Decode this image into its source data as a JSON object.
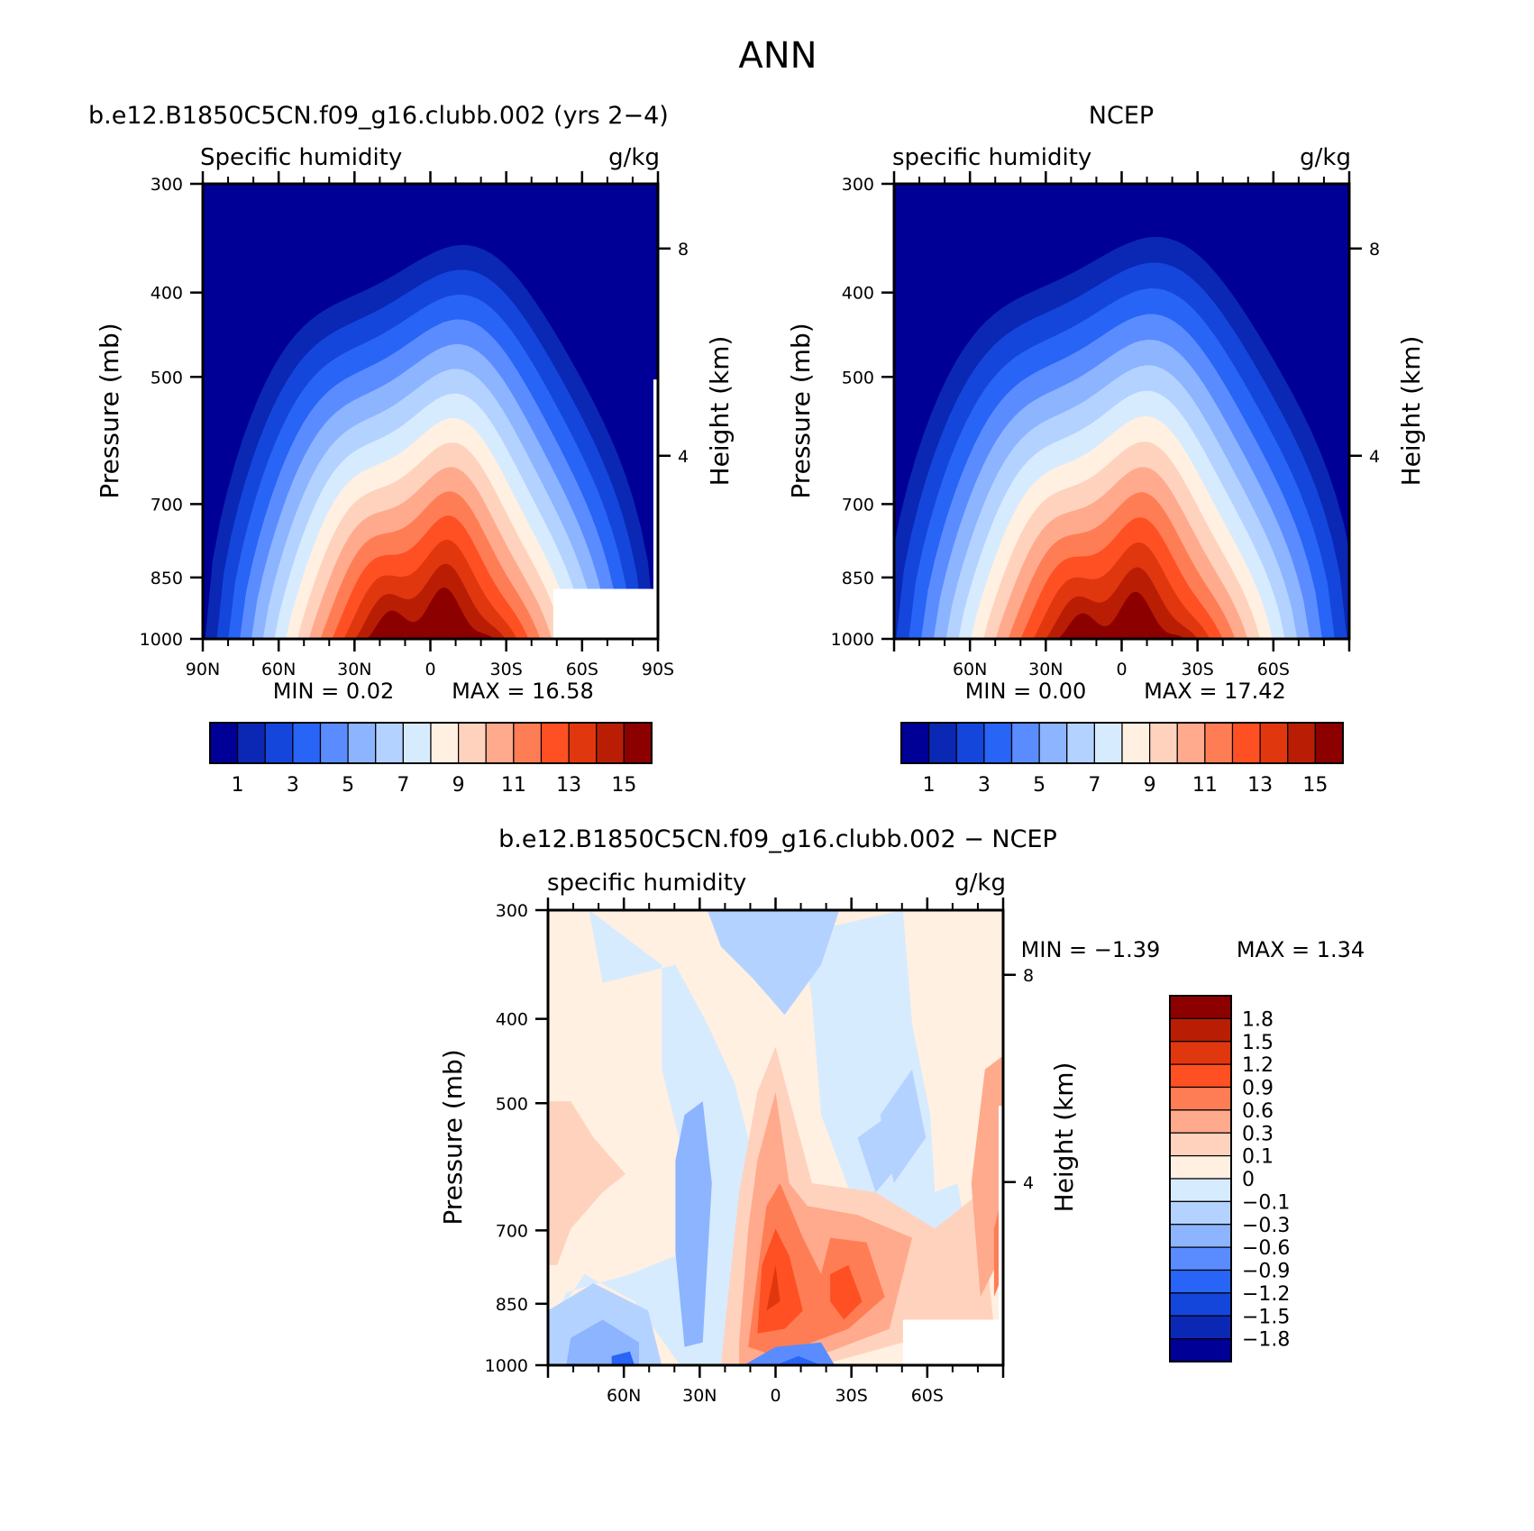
{
  "figure": {
    "title": "ANN"
  },
  "colors": {
    "main_scale": [
      "#000096",
      "#0a28b4",
      "#1446dc",
      "#2864f5",
      "#5a8cff",
      "#8cb4ff",
      "#b4d2ff",
      "#d7ebff",
      "#fff0e1",
      "#ffd2be",
      "#ffaa8c",
      "#ff7d55",
      "#ff5023",
      "#e1370f",
      "#b91e05",
      "#8c0000"
    ],
    "diff_scale": [
      "#000096",
      "#0a28b4",
      "#1446dc",
      "#2864f5",
      "#5a8cff",
      "#8cb4ff",
      "#b4d2ff",
      "#d7ebff",
      "#fff0e1",
      "#ffd2be",
      "#ffaa8c",
      "#ff7d55",
      "#ff5023",
      "#e1370f",
      "#b91e05",
      "#8c0000"
    ]
  },
  "chart_data": [
    {
      "id": "model",
      "type": "contour",
      "title": "b.e12.B1850C5CN.f09_g16.clubb.002 (yrs 2−4)",
      "variable": "Specific humidity",
      "units": "g/kg",
      "ylabel": "Pressure (mb)",
      "ylabel_right": "Height (km)",
      "x_ticks": [
        "90N",
        "60N",
        "30N",
        "0",
        "30S",
        "60S",
        "90S"
      ],
      "y_ticks": [
        "300",
        "400",
        "500",
        "700",
        "850",
        "1000"
      ],
      "right_ticks": [
        "8",
        "4"
      ],
      "xlim": [
        90,
        -90
      ],
      "ylim": [
        1000,
        300
      ],
      "min_text": "MIN = 0.02",
      "max_text": "MAX = 16.58",
      "min": 0.02,
      "max": 16.58,
      "contour_levels": [
        1,
        2,
        3,
        4,
        5,
        6,
        7,
        8,
        9,
        10,
        11,
        12,
        13,
        14,
        15
      ],
      "colorbar_labels": [
        "1",
        "3",
        "5",
        "7",
        "9",
        "11",
        "13",
        "15"
      ]
    },
    {
      "id": "obs",
      "type": "contour",
      "title": "NCEP",
      "variable": "specific humidity",
      "units": "g/kg",
      "ylabel": "Pressure (mb)",
      "ylabel_right": "Height (km)",
      "x_ticks": [
        "60N",
        "30N",
        "0",
        "30S",
        "60S"
      ],
      "y_ticks": [
        "300",
        "400",
        "500",
        "700",
        "850",
        "1000"
      ],
      "right_ticks": [
        "8",
        "4"
      ],
      "xlim": [
        90,
        -90
      ],
      "ylim": [
        1000,
        300
      ],
      "min_text": "MIN = 0.00",
      "max_text": "MAX = 17.42",
      "min": 0.0,
      "max": 17.42,
      "contour_levels": [
        1,
        2,
        3,
        4,
        5,
        6,
        7,
        8,
        9,
        10,
        11,
        12,
        13,
        14,
        15
      ],
      "colorbar_labels": [
        "1",
        "3",
        "5",
        "7",
        "9",
        "11",
        "13",
        "15"
      ]
    },
    {
      "id": "diff",
      "type": "contour",
      "title": "b.e12.B1850C5CN.f09_g16.clubb.002 − NCEP",
      "variable": "specific humidity",
      "units": "g/kg",
      "ylabel": "Pressure (mb)",
      "ylabel_right": "Height (km)",
      "x_ticks": [
        "60N",
        "30N",
        "0",
        "30S",
        "60S"
      ],
      "y_ticks": [
        "300",
        "400",
        "500",
        "700",
        "850",
        "1000"
      ],
      "right_ticks": [
        "8",
        "4"
      ],
      "xlim": [
        90,
        -90
      ],
      "ylim": [
        1000,
        300
      ],
      "min_text": "MIN = −1.39",
      "max_text": "MAX = 1.34",
      "min": -1.39,
      "max": 1.34,
      "contour_levels": [
        -1.8,
        -1.5,
        -1.2,
        -0.9,
        -0.6,
        -0.3,
        -0.1,
        0,
        0.1,
        0.3,
        0.6,
        0.9,
        1.2,
        1.5,
        1.8
      ],
      "colorbar_labels": [
        "1.8",
        "1.5",
        "1.2",
        "0.9",
        "0.6",
        "0.3",
        "0.1",
        "0",
        "−0.1",
        "−0.3",
        "−0.6",
        "−0.9",
        "−1.2",
        "−1.5",
        "−1.8"
      ]
    }
  ]
}
